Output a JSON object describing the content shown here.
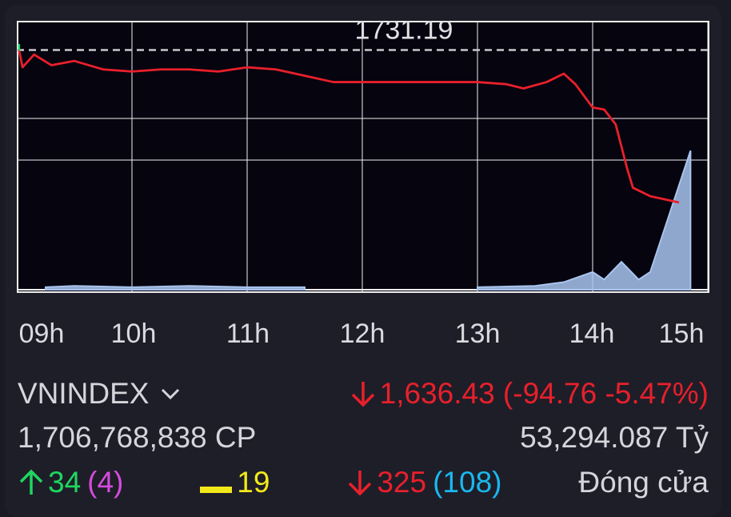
{
  "chart_data": {
    "type": "line",
    "reference_label": "1731.19",
    "reference_value": 1731.19,
    "x_tick_labels": [
      "09h",
      "10h",
      "11h",
      "12h",
      "13h",
      "14h",
      "15h"
    ],
    "grid": true,
    "series": [
      {
        "color": "#e8202b",
        "points": [
          [
            9.02,
            1731
          ],
          [
            9.05,
            1723
          ],
          [
            9.15,
            1729
          ],
          [
            9.3,
            1724
          ],
          [
            9.5,
            1726
          ],
          [
            9.75,
            1722
          ],
          [
            10.0,
            1721
          ],
          [
            10.25,
            1722
          ],
          [
            10.5,
            1722
          ],
          [
            10.75,
            1721
          ],
          [
            11.0,
            1723
          ],
          [
            11.25,
            1722
          ],
          [
            11.5,
            1719
          ],
          [
            11.75,
            1716
          ],
          [
            12.0,
            1716
          ],
          [
            12.5,
            1716
          ],
          [
            13.0,
            1716
          ],
          [
            13.25,
            1715
          ],
          [
            13.4,
            1713
          ],
          [
            13.6,
            1716
          ],
          [
            13.75,
            1720
          ],
          [
            13.85,
            1715
          ],
          [
            14.0,
            1704
          ],
          [
            14.1,
            1703
          ],
          [
            14.2,
            1696
          ],
          [
            14.3,
            1675
          ],
          [
            14.35,
            1666
          ],
          [
            14.5,
            1662
          ],
          [
            14.75,
            1659
          ]
        ]
      }
    ],
    "volume_color": "#a9c4ee",
    "volume": [
      [
        9.0,
        1
      ],
      [
        9.5,
        1
      ],
      [
        10.0,
        1
      ],
      [
        10.5,
        1
      ],
      [
        11.0,
        1
      ],
      [
        11.5,
        1
      ],
      [
        13.0,
        1
      ],
      [
        13.5,
        2
      ],
      [
        13.8,
        4
      ],
      [
        14.0,
        6
      ],
      [
        14.2,
        8
      ],
      [
        14.4,
        20
      ],
      [
        14.75,
        100
      ],
      [
        14.75,
        0
      ]
    ]
  },
  "summary": {
    "index_name": "VNINDEX",
    "price_text": "1,636.43 (-94.76 -5.47%)",
    "volume_text": "1,706,768,838 CP",
    "value_text": "53,294.087 Tỷ",
    "advancers": "34",
    "advancers_ceiling": "(4)",
    "unchanged": "19",
    "decliners": "325",
    "decliners_floor": "(108)",
    "status": "Đóng cửa"
  },
  "colors": {
    "down": "#e8202b",
    "up": "#1ed760",
    "ceiling": "#d54bdc",
    "reference": "#f2e91a",
    "floor": "#1ab8ef"
  }
}
